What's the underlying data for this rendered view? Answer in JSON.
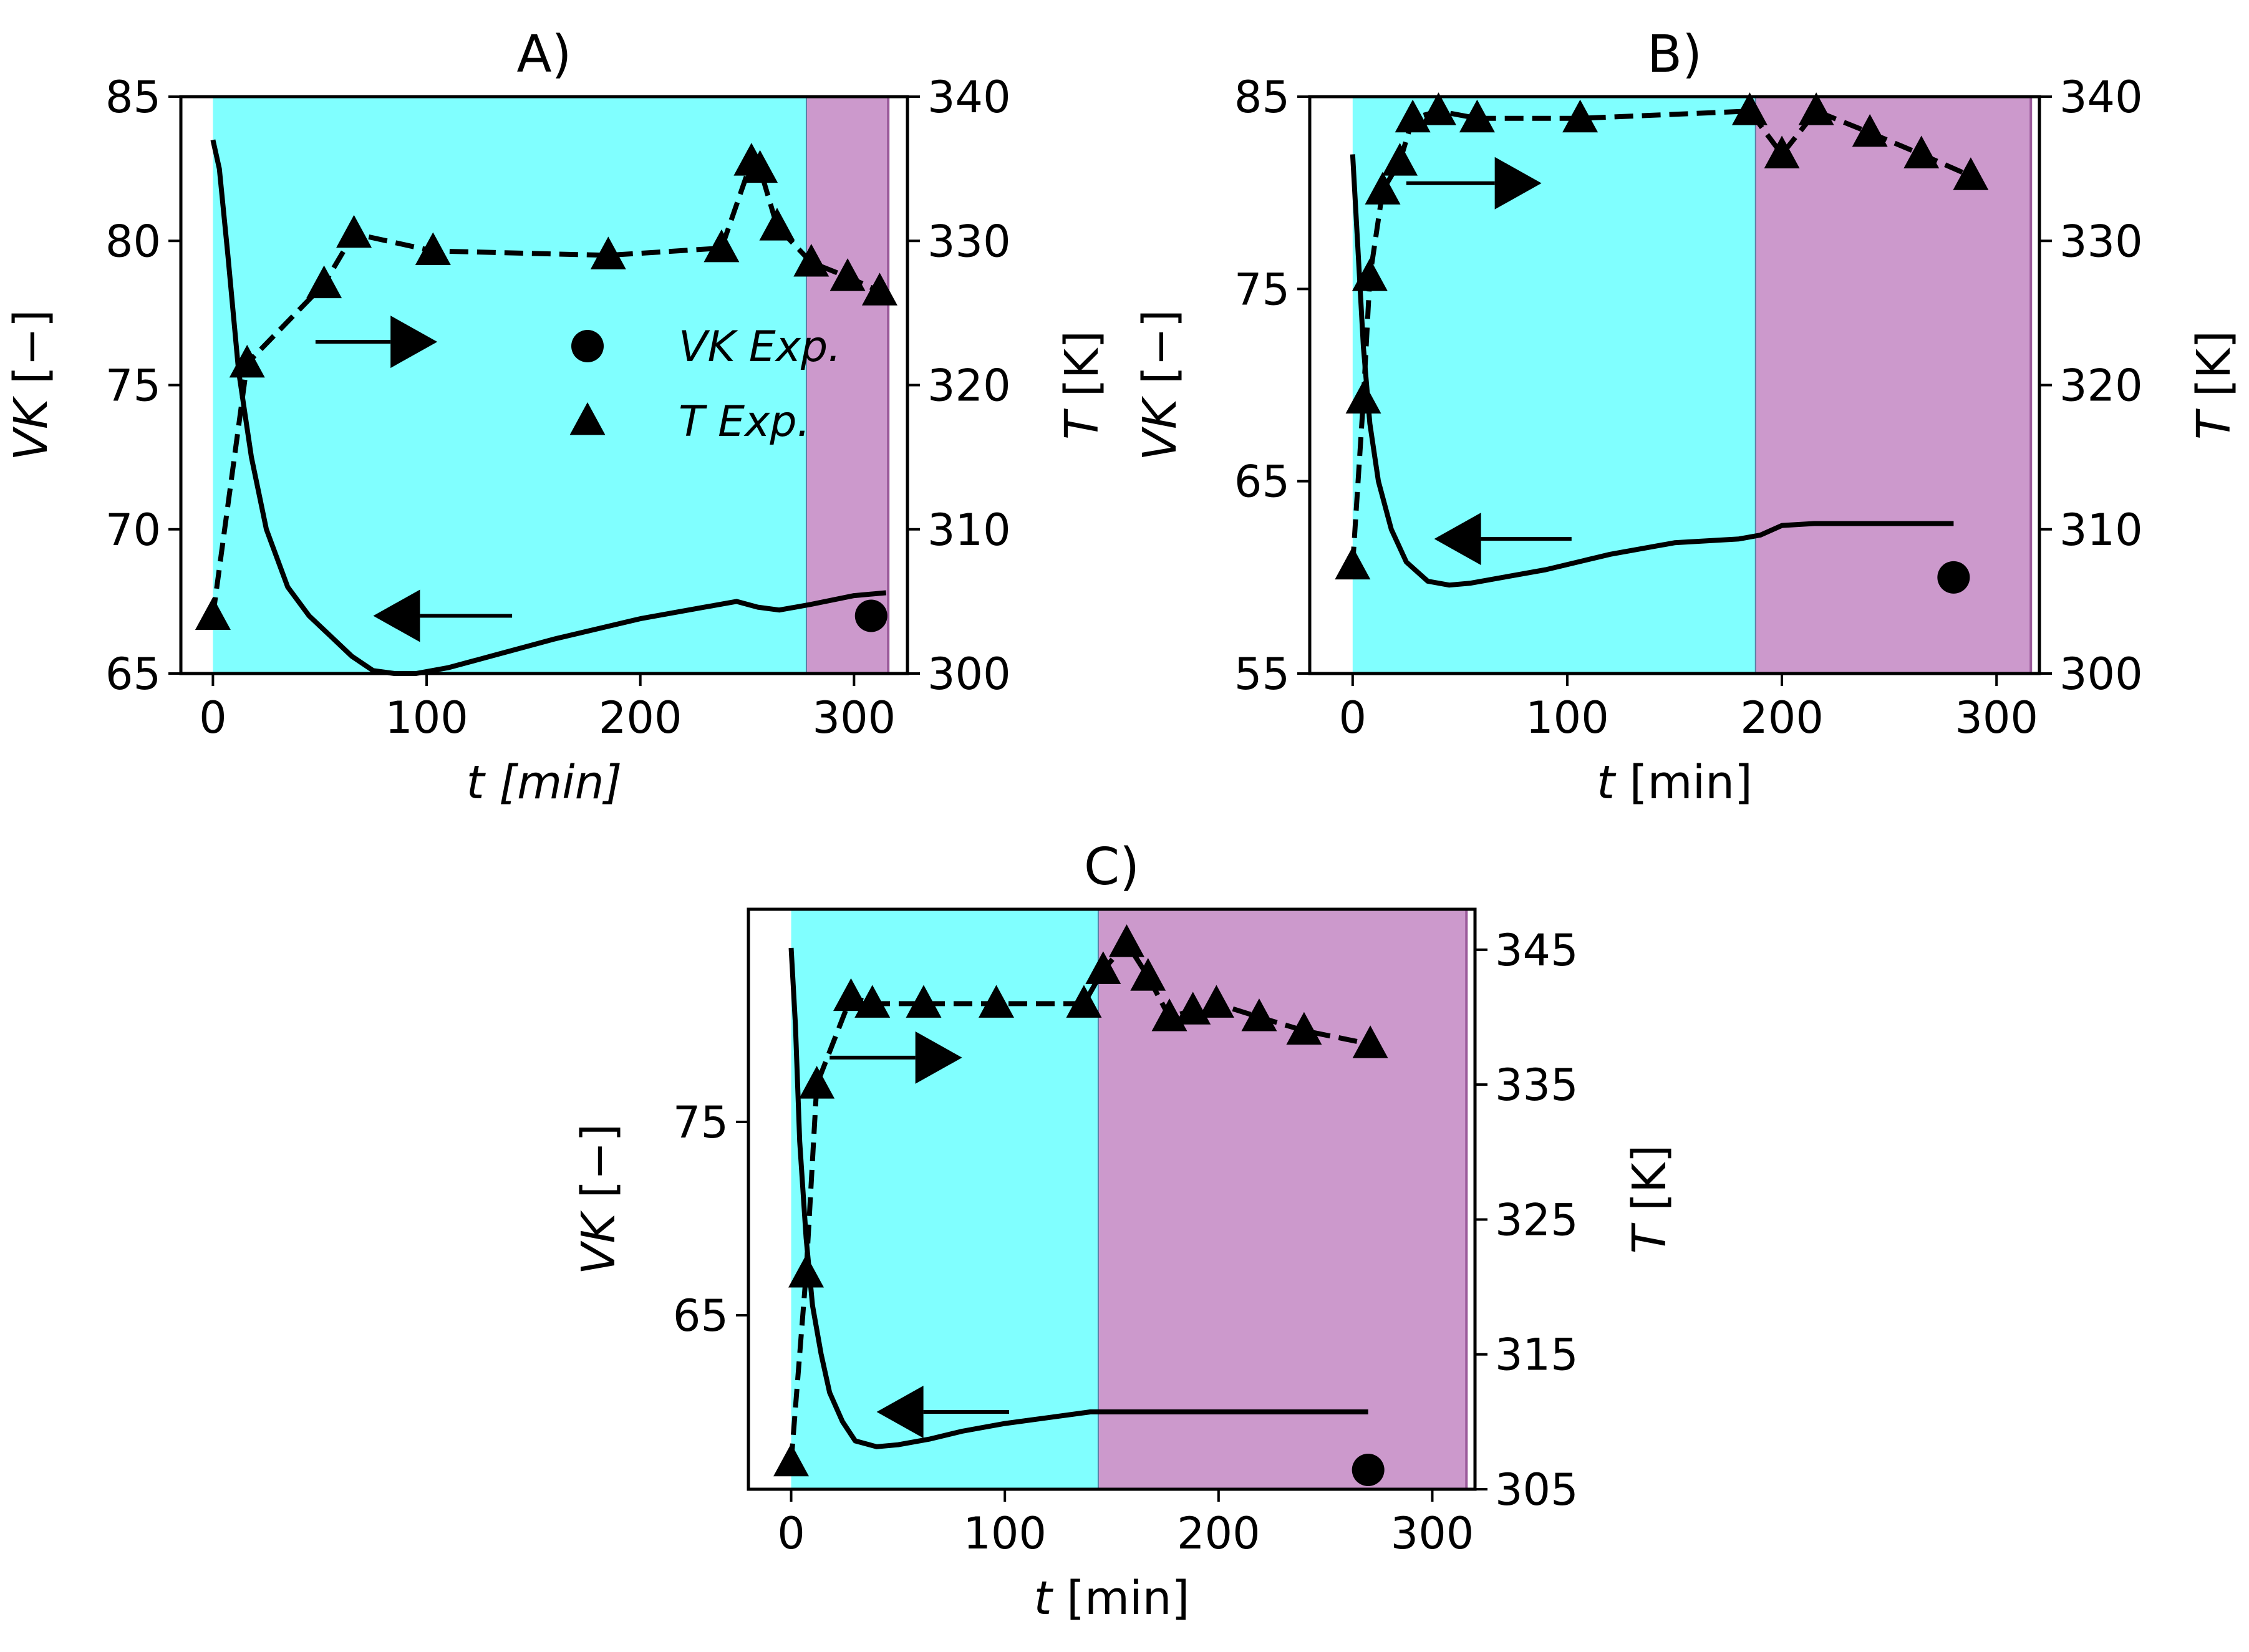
{
  "chart_data": [
    {
      "type": "line",
      "title": "A)",
      "xlabel": {
        "symbol": "t",
        "unit": "[min]",
        "unit_italic": true
      },
      "ylabel_left": {
        "symbol": "VK",
        "unit": "[−]"
      },
      "ylabel_right": {
        "symbol": "T",
        "unit": "[K]"
      },
      "xlim": [
        -15,
        325
      ],
      "xticks": [
        0,
        100,
        200,
        300
      ],
      "ylim_left": [
        65,
        85
      ],
      "yticks_left": [
        65,
        70,
        75,
        80,
        85
      ],
      "ylim_right": [
        300,
        340
      ],
      "yticks_right": [
        300,
        310,
        320,
        330,
        340
      ],
      "phases": [
        {
          "name": "phase-1",
          "color": "#80ffff",
          "x": [
            0,
            278
          ]
        },
        {
          "name": "phase-2",
          "color": "#cc99cc",
          "x": [
            278,
            316
          ]
        }
      ],
      "series": [
        {
          "name": "VK model",
          "axis": "left",
          "style": "solid",
          "x": [
            0,
            3,
            7,
            12,
            18,
            25,
            35,
            45,
            55,
            65,
            75,
            85,
            95,
            110,
            130,
            160,
            200,
            230,
            245,
            255,
            265,
            280,
            300,
            315
          ],
          "y": [
            83.5,
            82.5,
            79.5,
            75.5,
            72.5,
            70.0,
            68.0,
            67.0,
            66.3,
            65.6,
            65.1,
            65.0,
            65.0,
            65.2,
            65.6,
            66.2,
            66.9,
            67.3,
            67.5,
            67.3,
            67.2,
            67.4,
            67.7,
            67.8
          ]
        },
        {
          "name": "T Exp.",
          "axis": "right",
          "style": "dashed",
          "marker": "triangle",
          "x": [
            0,
            16,
            52,
            66,
            103,
            185,
            238,
            252,
            256,
            264,
            280,
            297,
            312
          ],
          "y": [
            304,
            321.5,
            327,
            330.5,
            329.3,
            329,
            329.5,
            335.5,
            335,
            331,
            328.5,
            327.5,
            326.5
          ]
        },
        {
          "name": "VK Exp.",
          "axis": "left",
          "marker": "circle",
          "x": [
            308
          ],
          "y": [
            67
          ]
        }
      ],
      "annotations": [
        {
          "type": "arrow",
          "direction": "right",
          "axis": "right",
          "x": [
            48,
            105
          ],
          "y": 323
        },
        {
          "type": "arrow",
          "direction": "left",
          "axis": "left",
          "x": [
            140,
            75
          ],
          "y": 67
        }
      ],
      "legend": {
        "position": "center-right",
        "entries": [
          {
            "symbol": "VK",
            "rest": "Exp.",
            "marker": "circle"
          },
          {
            "symbol": "T",
            "rest": "Exp.",
            "marker": "triangle"
          }
        ]
      }
    },
    {
      "type": "line",
      "title": "B)",
      "xlabel": {
        "symbol": "t",
        "unit": "[min]",
        "unit_italic": false
      },
      "ylabel_left": {
        "symbol": "VK",
        "unit": "[−]"
      },
      "ylabel_right": {
        "symbol": "T",
        "unit": "[K]"
      },
      "xlim": [
        -20,
        320
      ],
      "xticks": [
        0,
        100,
        200,
        300
      ],
      "ylim_left": [
        55,
        85
      ],
      "yticks_left": [
        55,
        65,
        75,
        85
      ],
      "ylim_right": [
        300,
        340
      ],
      "yticks_right": [
        300,
        310,
        320,
        330,
        340
      ],
      "phases": [
        {
          "name": "phase-1",
          "color": "#80ffff",
          "x": [
            0,
            188
          ]
        },
        {
          "name": "phase-2",
          "color": "#cc99cc",
          "x": [
            188,
            316
          ]
        }
      ],
      "series": [
        {
          "name": "VK model",
          "axis": "left",
          "style": "solid",
          "x": [
            0,
            2,
            5,
            8,
            12,
            18,
            25,
            35,
            45,
            55,
            70,
            90,
            120,
            150,
            180,
            190,
            200,
            215,
            240,
            260,
            280
          ],
          "y": [
            82,
            78,
            72,
            68,
            65,
            62.5,
            60.8,
            59.8,
            59.6,
            59.7,
            60.0,
            60.4,
            61.2,
            61.8,
            62.0,
            62.2,
            62.7,
            62.8,
            62.8,
            62.8,
            62.8
          ]
        },
        {
          "name": "T Exp.",
          "axis": "right",
          "style": "dashed",
          "marker": "triangle",
          "x": [
            0,
            5,
            8,
            14,
            22,
            28,
            40,
            58,
            106,
            185,
            200,
            216,
            241,
            265,
            288
          ],
          "y": [
            307.5,
            319,
            327.5,
            333.5,
            335.5,
            338.5,
            339,
            338.5,
            338.5,
            339,
            336,
            339,
            337.5,
            336,
            334.5
          ]
        },
        {
          "name": "VK Exp.",
          "axis": "left",
          "marker": "circle",
          "x": [
            280
          ],
          "y": [
            60
          ]
        }
      ],
      "annotations": [
        {
          "type": "arrow",
          "direction": "right",
          "axis": "right",
          "x": [
            25,
            88
          ],
          "y": 334
        },
        {
          "type": "arrow",
          "direction": "left",
          "axis": "left",
          "x": [
            102,
            38
          ],
          "y": 62
        }
      ]
    },
    {
      "type": "line",
      "title": "C)",
      "xlabel": {
        "symbol": "t",
        "unit": "[min]",
        "unit_italic": false
      },
      "ylabel_left": {
        "symbol": "VK",
        "unit": "[−]"
      },
      "ylabel_right": {
        "symbol": "T",
        "unit": "[K]"
      },
      "xlim": [
        -20,
        320
      ],
      "xticks": [
        0,
        100,
        200,
        300
      ],
      "ylim_left": [
        56,
        86
      ],
      "yticks_left": [
        65,
        75
      ],
      "ylim_right": [
        305,
        348
      ],
      "yticks_right": [
        305,
        315,
        325,
        335,
        345
      ],
      "phases": [
        {
          "name": "phase-1",
          "color": "#80ffff",
          "x": [
            0,
            144
          ]
        },
        {
          "name": "phase-2",
          "color": "#cc99cc",
          "x": [
            144,
            316
          ]
        }
      ],
      "series": [
        {
          "name": "VK model",
          "axis": "left",
          "style": "solid",
          "x": [
            0,
            2,
            4,
            7,
            10,
            14,
            18,
            24,
            30,
            40,
            50,
            65,
            80,
            100,
            120,
            140,
            150,
            170,
            200,
            240,
            270
          ],
          "y": [
            84,
            80,
            74,
            69,
            65.5,
            63,
            61,
            59.5,
            58.5,
            58.2,
            58.3,
            58.6,
            59.0,
            59.4,
            59.7,
            60.0,
            60.0,
            60.0,
            60.0,
            60.0,
            60.0
          ]
        },
        {
          "name": "T Exp.",
          "axis": "right",
          "style": "dashed",
          "marker": "triangle",
          "x": [
            0,
            7,
            12,
            28,
            38,
            62,
            96,
            137,
            146,
            157,
            167,
            177,
            188,
            199,
            219,
            240,
            271
          ],
          "y": [
            307,
            321,
            335,
            341.5,
            341,
            341,
            341,
            341,
            343.5,
            345.5,
            343,
            340,
            340.5,
            341,
            340,
            339,
            338
          ]
        },
        {
          "name": "VK Exp.",
          "axis": "left",
          "marker": "circle",
          "x": [
            270
          ],
          "y": [
            57
          ]
        }
      ],
      "annotations": [
        {
          "type": "arrow",
          "direction": "right",
          "axis": "right",
          "x": [
            18,
            80
          ],
          "y": 337
        },
        {
          "type": "arrow",
          "direction": "left",
          "axis": "left",
          "x": [
            102,
            40
          ],
          "y": 60
        }
      ]
    }
  ]
}
